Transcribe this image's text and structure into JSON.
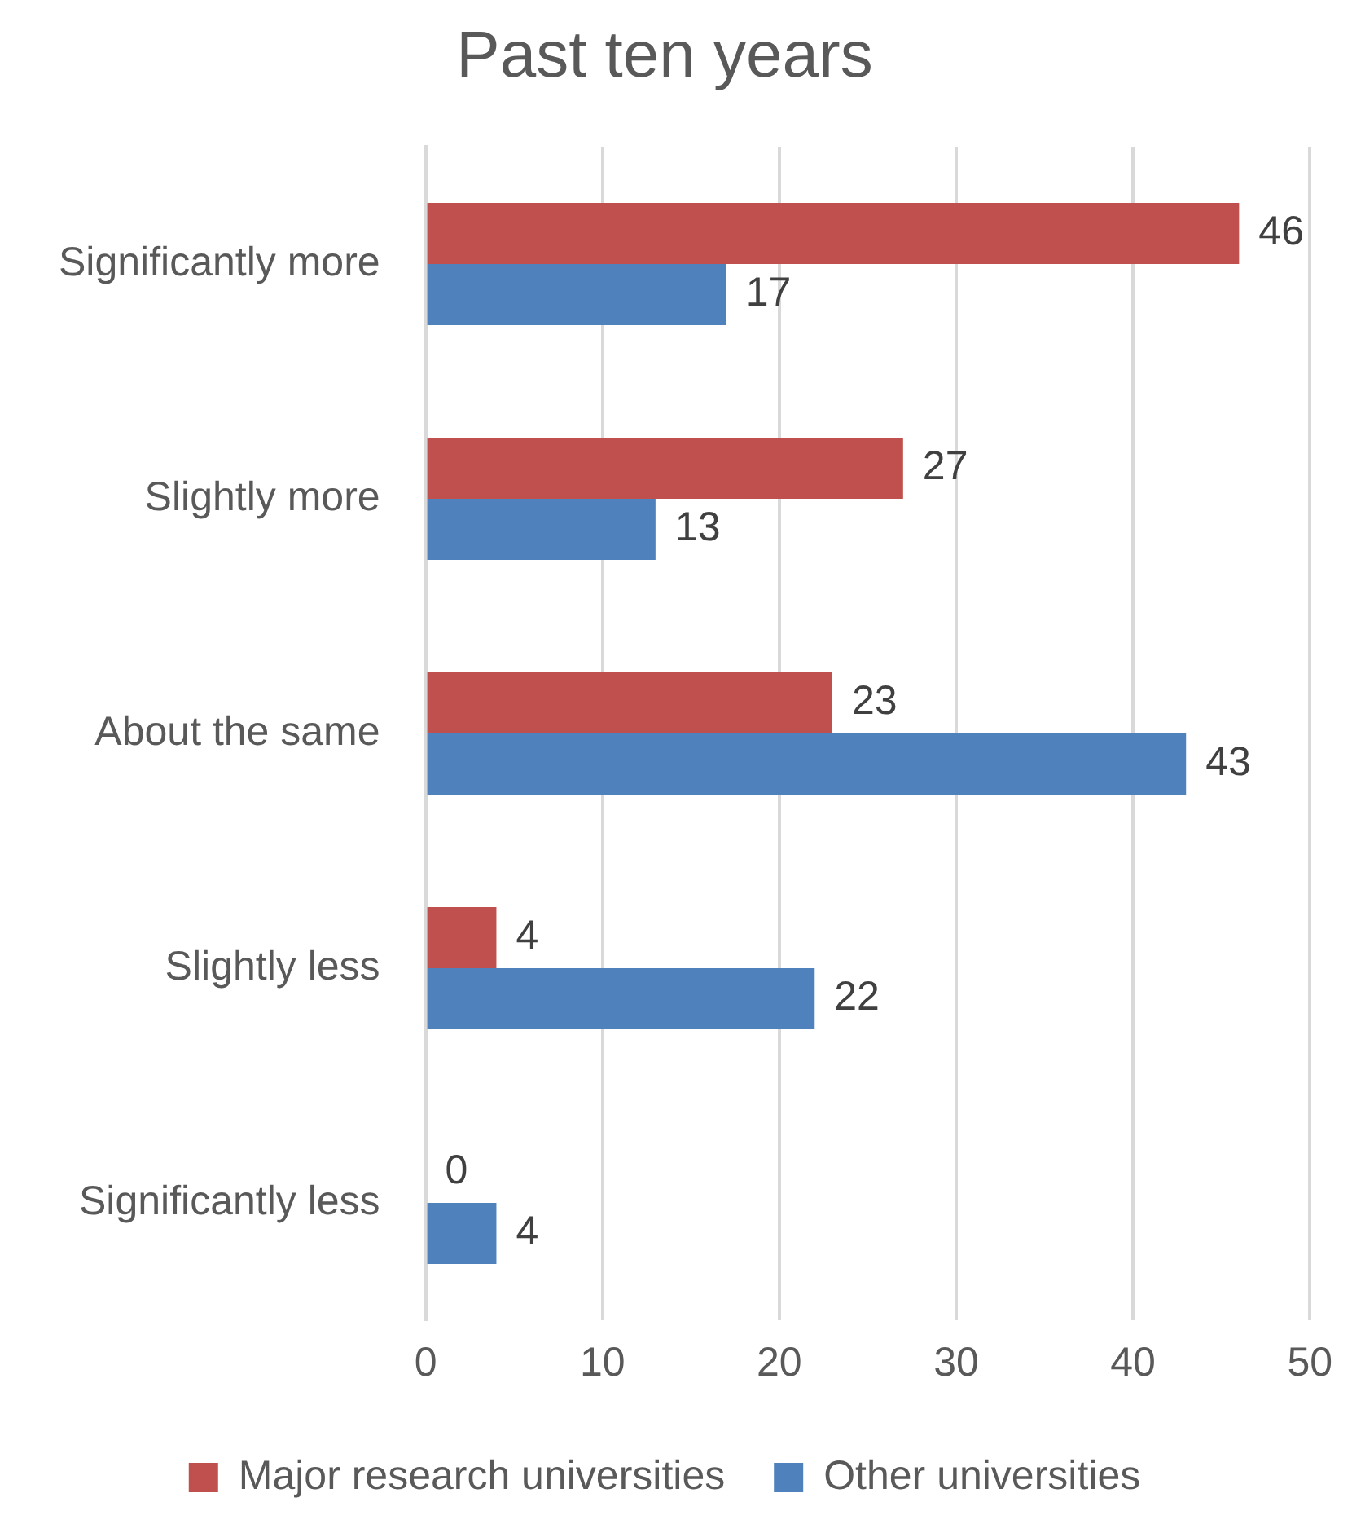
{
  "chart_data": {
    "type": "bar",
    "orientation": "horizontal",
    "title": "Past ten years",
    "categories": [
      "Significantly more",
      "Slightly more",
      "About the same",
      "Slightly less",
      "Significantly less"
    ],
    "series": [
      {
        "name": "Major research universities",
        "color": "#c0504d",
        "values": [
          46,
          27,
          23,
          4,
          0
        ]
      },
      {
        "name": "Other universities",
        "color": "#4f81bd",
        "values": [
          17,
          13,
          43,
          22,
          4
        ]
      }
    ],
    "xlim": [
      0,
      50
    ],
    "xticks": [
      0,
      10,
      20,
      30,
      40,
      50
    ],
    "grid": "x",
    "legend": "bottom",
    "data_labels": true
  }
}
